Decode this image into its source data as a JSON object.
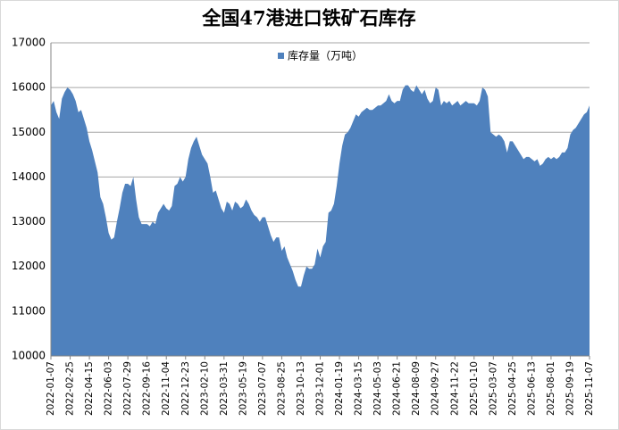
{
  "chart_data": {
    "type": "area",
    "title": "全国47港进口铁矿石库存",
    "categories": [
      "2022-01-07",
      null,
      null,
      null,
      null,
      null,
      null,
      "2022-02-25",
      null,
      null,
      null,
      null,
      null,
      null,
      "2022-04-15",
      null,
      null,
      null,
      null,
      null,
      null,
      "2022-06-03",
      null,
      null,
      null,
      null,
      null,
      null,
      "2022-07-29",
      null,
      null,
      null,
      null,
      null,
      null,
      "2022-09-16",
      null,
      null,
      null,
      null,
      null,
      null,
      "2022-11-04",
      null,
      null,
      null,
      null,
      null,
      null,
      "2022-12-23",
      null,
      null,
      null,
      null,
      null,
      null,
      "2023-02-10",
      null,
      null,
      null,
      null,
      null,
      null,
      "2023-03-31",
      null,
      null,
      null,
      null,
      null,
      null,
      "2023-05-19",
      null,
      null,
      null,
      null,
      null,
      null,
      "2023-07-07",
      null,
      null,
      null,
      null,
      null,
      null,
      "2023-08-25",
      null,
      null,
      null,
      null,
      null,
      null,
      "2023-10-13",
      null,
      null,
      null,
      null,
      null,
      null,
      "2023-12-01",
      null,
      null,
      null,
      null,
      null,
      null,
      "2024-01-19",
      null,
      null,
      null,
      null,
      null,
      null,
      "2024-03-15",
      null,
      null,
      null,
      null,
      null,
      null,
      "2024-05-03",
      null,
      null,
      null,
      null,
      null,
      null,
      "2024-06-21",
      null,
      null,
      null,
      null,
      null,
      null,
      "2024-08-09",
      null,
      null,
      null,
      null,
      null,
      null,
      "2024-09-27",
      null,
      null,
      null,
      null,
      null,
      null,
      "2024-11-22",
      null,
      null,
      null,
      null,
      null,
      null,
      "2025-01-10",
      null,
      null,
      null,
      null,
      null,
      null,
      "2025-03-07",
      null,
      null,
      null,
      null,
      null,
      null,
      "2025-04-25",
      null,
      null,
      null,
      null,
      null,
      null,
      "2025-06-13",
      null,
      null,
      null,
      null,
      null,
      null,
      "2025-08-01",
      null,
      null,
      null,
      null,
      null,
      null,
      "2025-09-19",
      null,
      null,
      null,
      null,
      null,
      null,
      "2025-11-07"
    ],
    "series": [
      {
        "name": "库存量（万吨）",
        "color": "#4f81bd",
        "values": [
          15600,
          15700,
          15450,
          15300,
          15750,
          15900,
          16000,
          15950,
          15850,
          15700,
          15450,
          15500,
          15300,
          15100,
          14800,
          14600,
          14350,
          14100,
          13550,
          13400,
          13100,
          12750,
          12600,
          12650,
          13000,
          13300,
          13650,
          13850,
          13850,
          13800,
          14000,
          13500,
          13100,
          12950,
          12950,
          12950,
          12900,
          13000,
          12950,
          13200,
          13300,
          13400,
          13300,
          13250,
          13350,
          13800,
          13850,
          14000,
          13900,
          14000,
          14400,
          14650,
          14800,
          14900,
          14700,
          14500,
          14400,
          14300,
          14000,
          13650,
          13700,
          13500,
          13300,
          13200,
          13450,
          13400,
          13250,
          13450,
          13400,
          13300,
          13350,
          13500,
          13400,
          13250,
          13150,
          13100,
          13000,
          13100,
          13100,
          12900,
          12700,
          12550,
          12650,
          12650,
          12350,
          12450,
          12200,
          12050,
          11900,
          11700,
          11550,
          11550,
          11800,
          12000,
          11950,
          11950,
          12050,
          12400,
          12200,
          12450,
          12550,
          13200,
          13250,
          13400,
          13800,
          14300,
          14700,
          14950,
          15000,
          15100,
          15250,
          15400,
          15350,
          15450,
          15500,
          15550,
          15500,
          15500,
          15550,
          15600,
          15600,
          15650,
          15700,
          15850,
          15700,
          15650,
          15700,
          15700,
          15950,
          16050,
          16050,
          15950,
          15900,
          16050,
          15950,
          15850,
          15950,
          15750,
          15650,
          15700,
          16000,
          15950,
          15600,
          15700,
          15650,
          15700,
          15600,
          15650,
          15700,
          15600,
          15650,
          15700,
          15650,
          15650,
          15650,
          15600,
          15700,
          16000,
          15950,
          15800,
          15000,
          14950,
          14900,
          14950,
          14900,
          14800,
          14550,
          14800,
          14800,
          14700,
          14600,
          14500,
          14400,
          14450,
          14450,
          14400,
          14350,
          14400,
          14250,
          14300,
          14400,
          14450,
          14400,
          14450,
          14400,
          14450,
          14550,
          14550,
          14650,
          14950,
          15050,
          15100,
          15200,
          15300,
          15400,
          15450,
          15600
        ]
      }
    ],
    "ylim": [
      10000,
      17000
    ],
    "yticks": [
      10000,
      11000,
      12000,
      13000,
      14000,
      15000,
      16000,
      17000
    ],
    "grid": true,
    "legend": "top"
  }
}
